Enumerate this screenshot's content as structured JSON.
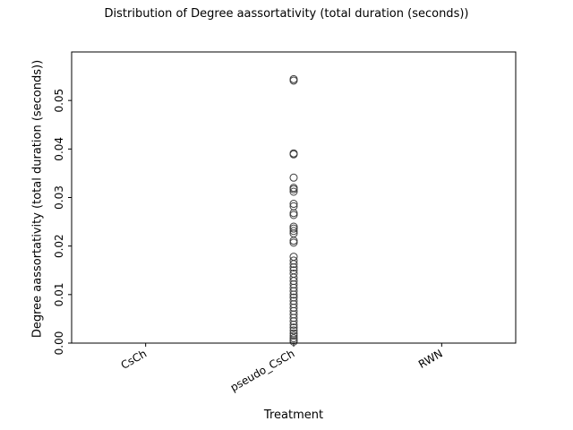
{
  "chart_data": {
    "type": "box",
    "title": "Distribution of Degree aassortativity (total duration (seconds))",
    "xlabel": "Treatment",
    "ylabel": "Degree aassortativity (total duration (seconds))",
    "categories": [
      "CsCh",
      "pseudo_CsCh",
      "RWN"
    ],
    "ylim": [
      0.0,
      0.06
    ],
    "yticks": [
      "0.00",
      "0.01",
      "0.02",
      "0.03",
      "0.04",
      "0.05"
    ],
    "grid": false,
    "colors": {
      "marker_edge": "#3d3d3d",
      "axes": "#000000"
    },
    "series": [
      {
        "category": "CsCh",
        "outliers": []
      },
      {
        "category": "pseudo_CsCh",
        "outliers": [
          0.0544,
          0.0541,
          0.0391,
          0.0389,
          0.0341,
          0.032,
          0.0317,
          0.0312,
          0.0287,
          0.0282,
          0.0268,
          0.0264,
          0.024,
          0.0236,
          0.0231,
          0.0226,
          0.0211,
          0.0207,
          0.0178,
          0.017,
          0.0163,
          0.0156,
          0.015,
          0.0143,
          0.0135,
          0.0128,
          0.0121,
          0.0114,
          0.0107,
          0.01,
          0.0094,
          0.0087,
          0.008,
          0.0073,
          0.0066,
          0.0059,
          0.0052,
          0.0045,
          0.0038,
          0.0032,
          0.0026,
          0.002,
          0.0015,
          0.001,
          0.0006,
          0.0003
        ]
      },
      {
        "category": "RWN",
        "outliers": []
      }
    ]
  }
}
